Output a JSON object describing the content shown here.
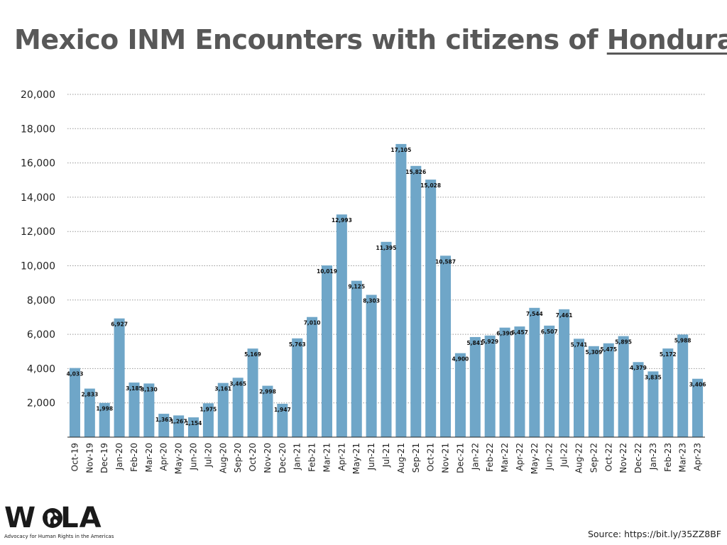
{
  "title": {
    "prefix": "Mexico INM Encounters with citizens of ",
    "highlight": "Honduras"
  },
  "source": "Source: https://bit.ly/35ZZ8BF",
  "logo": {
    "wordmark": "WOLA",
    "tagline": "Advocacy for Human Rights in the Americas"
  },
  "colors": {
    "bar": "#6fa6c8",
    "grid": "#999999",
    "title": "#585858"
  },
  "chart_data": {
    "type": "bar",
    "title": "Mexico INM Encounters with citizens of Honduras",
    "xlabel": "",
    "ylabel": "",
    "ylim": [
      0,
      20000
    ],
    "yticks": [
      2000,
      4000,
      6000,
      8000,
      10000,
      12000,
      14000,
      16000,
      18000,
      20000
    ],
    "ytick_labels": [
      "2,000",
      "4,000",
      "6,000",
      "8,000",
      "10,000",
      "12,000",
      "14,000",
      "16,000",
      "18,000",
      "20,000"
    ],
    "grid": true,
    "categories": [
      "Oct-19",
      "Nov-19",
      "Dec-19",
      "Jan-20",
      "Feb-20",
      "Mar-20",
      "Apr-20",
      "May-20",
      "Jun-20",
      "Jul-20",
      "Aug-20",
      "Sep-20",
      "Oct-20",
      "Nov-20",
      "Dec-20",
      "Jan-21",
      "Feb-21",
      "Mar-21",
      "Apr-21",
      "May-21",
      "Jun-21",
      "Jul-21",
      "Aug-21",
      "Sep-21",
      "Oct-21",
      "Nov-21",
      "Dec-21",
      "Jan-22",
      "Feb-22",
      "Mar-22",
      "Apr-22",
      "May-22",
      "Jun-22",
      "Jul-22",
      "Aug-22",
      "Sep-22",
      "Oct-22",
      "Nov-22",
      "Dec-22",
      "Jan-23",
      "Feb-23",
      "Mar-23",
      "Apr-23"
    ],
    "values": [
      4033,
      2833,
      1998,
      6927,
      3185,
      3130,
      1363,
      1267,
      1154,
      1975,
      3161,
      3465,
      5169,
      2998,
      1947,
      5763,
      7010,
      10019,
      12993,
      9125,
      8303,
      11395,
      17105,
      15826,
      15028,
      10587,
      4900,
      5841,
      5929,
      6390,
      6457,
      7544,
      6507,
      7461,
      5741,
      5309,
      5475,
      5895,
      4379,
      3835,
      5172,
      5988,
      3406
    ],
    "labels": [
      "4,033",
      "2,833",
      "1,998",
      "6,927",
      "3,185",
      "3,130",
      "1,363",
      "1,267",
      "1,154",
      "1,975",
      "3,161",
      "3,465",
      "5,169",
      "2,998",
      "1,947",
      "5,763",
      "7,010",
      "10,019",
      "12,993",
      "9,125",
      "8,303",
      "11,395",
      "17,105",
      "15,826",
      "15,028",
      "10,587",
      "4,900",
      "5,841",
      "5,929",
      "6,390",
      "6,457",
      "7,544",
      "6,507",
      "7,461",
      "5,741",
      "5,309",
      "5,475",
      "5,895",
      "4,379",
      "3,835",
      "5,172",
      "5,988",
      "3,406"
    ]
  }
}
